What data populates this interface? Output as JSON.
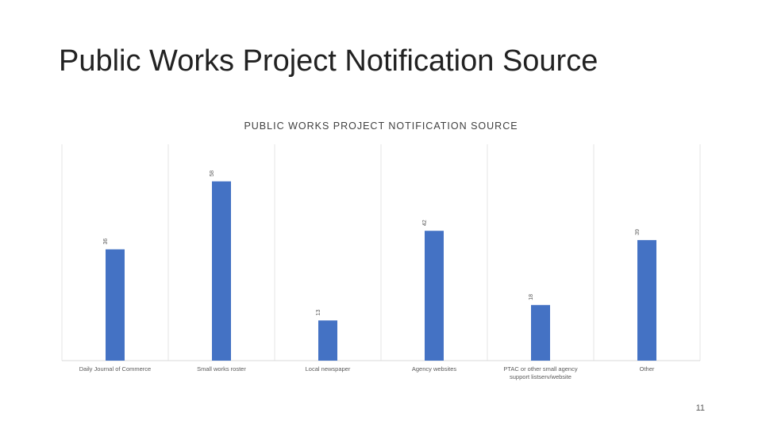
{
  "slide": {
    "title": "Public Works Project Notification Source",
    "page_number": "11"
  },
  "colors": {
    "bar": "#4472C4",
    "grid": "#E6E6E6",
    "text": "#595959"
  },
  "chart_data": {
    "type": "bar",
    "title": "PUBLIC WORKS PROJECT NOTIFICATION SOURCE",
    "xlabel": "",
    "ylabel": "",
    "categories": [
      "Daily Journal of Commerce",
      "Small works roster",
      "Local newspaper",
      "Agency websites",
      "PTAC or other small agency support listserv/website",
      "Other"
    ],
    "values": [
      36,
      58,
      13,
      42,
      18,
      39
    ],
    "data_labels": [
      "36",
      "58",
      "13",
      "42",
      "18",
      "39"
    ],
    "data_label_orientation": "vertical",
    "ylim": [
      0,
      70
    ],
    "grid": "vertical category separators",
    "legend": "none"
  }
}
